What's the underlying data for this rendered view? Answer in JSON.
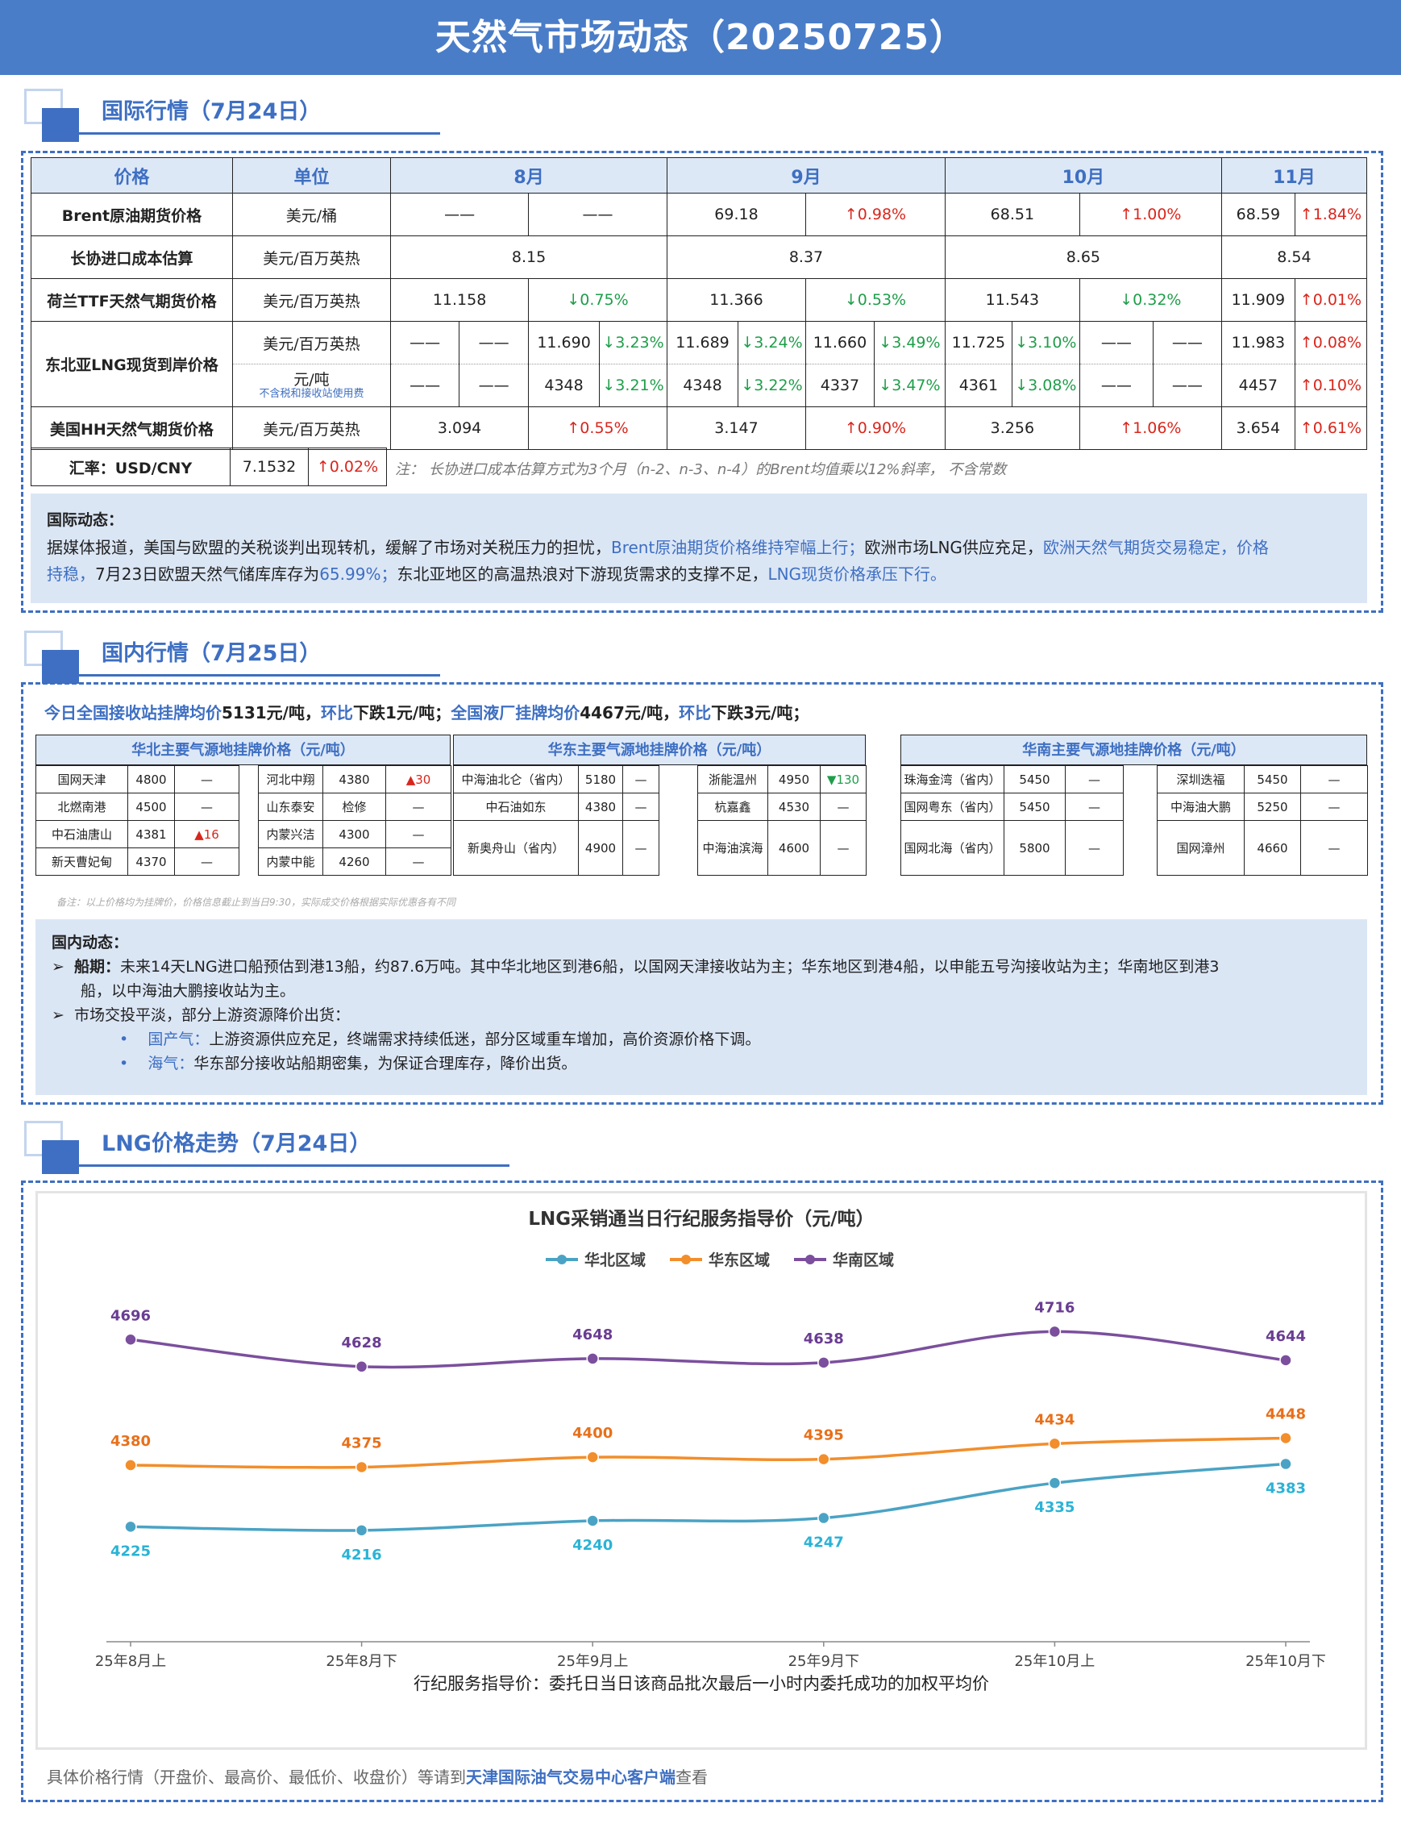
{
  "title": "天然气市场动态（20250725）",
  "sections": {
    "intl": "国际行情（7月24日）",
    "domestic": "国内行情（7月25日）",
    "lng": "LNG价格走势（7月24日）"
  },
  "intl_table": {
    "headers": [
      "价格",
      "单位",
      "8月",
      "9月",
      "10月",
      "11月"
    ],
    "brent": {
      "name": "Brent原油期货价格",
      "unit": "美元/桶",
      "aug": "——",
      "aug_chg": "——",
      "sep": "69.18",
      "sep_chg": "↑0.98%",
      "oct": "68.51",
      "oct_chg": "↑1.00%",
      "nov": "68.59",
      "nov_chg": "↑1.84%"
    },
    "longxie": {
      "name": "长协进口成本估算",
      "unit": "美元/百万英热",
      "aug": "8.15",
      "sep": "8.37",
      "oct": "8.65",
      "nov": "8.54"
    },
    "ttf": {
      "name": "荷兰TTF天然气期货价格",
      "unit": "美元/百万英热",
      "aug": "11.158",
      "aug_chg": "↓0.75%",
      "sep": "11.366",
      "sep_chg": "↓0.53%",
      "oct": "11.543",
      "oct_chg": "↓0.32%",
      "nov": "11.909",
      "nov_chg": "↑0.01%"
    },
    "neasia": {
      "name": "东北亚LNG现货到岸价格",
      "unit1": "美元/百万英热",
      "unit2": "元/吨",
      "unit2_note": "不含税和接收站使用费",
      "row1": [
        "——",
        "——",
        "11.690",
        "↓3.23%",
        "11.689",
        "↓3.24%",
        "11.660",
        "↓3.49%",
        "11.725",
        "↓3.10%",
        "——",
        "——",
        "11.983",
        "↑0.08%"
      ],
      "row2": [
        "——",
        "——",
        "4348",
        "↓3.21%",
        "4348",
        "↓3.22%",
        "4337",
        "↓3.47%",
        "4361",
        "↓3.08%",
        "——",
        "——",
        "4457",
        "↑0.10%"
      ]
    },
    "hh": {
      "name": "美国HH天然气期货价格",
      "unit": "美元/百万英热",
      "aug": "3.094",
      "aug_chg": "↑0.55%",
      "sep": "3.147",
      "sep_chg": "↑0.90%",
      "oct": "3.256",
      "oct_chg": "↑1.06%",
      "nov": "3.654",
      "nov_chg": "↑0.61%"
    },
    "fx": {
      "label": "汇率：USD/CNY",
      "value": "7.1532",
      "chg": "↑0.02%"
    },
    "note": "注： 长协进口成本估算方式为3个月（n-2、n-3、n-4）的Brent均值乘以12%斜率， 不含常数"
  },
  "intl_news": {
    "title": "国际动态：",
    "p1": "据媒体报道，美国与欧盟的关税谈判出现转机，缓解了市场对关税压力的担忧，",
    "p1_blue": "Brent原油期货价格维持窄幅上行；",
    "p2": "欧洲市场LNG供应充足，",
    "p2_blue": "欧洲天然气期货交易稳定，价格",
    "p3_blue": "持稳，",
    "p3": "7月23日欧盟天然气储库库存为",
    "p3_pct": "65.99%；",
    "p3_rest": "东北亚地区的高温热浪对下游现货需求的支撑不足，",
    "p3_blue2": "LNG现货价格承压下行。"
  },
  "domestic": {
    "summary_a": "今日全国接收站挂牌均价",
    "summary_b": "5131元/吨，",
    "summary_c": "环比",
    "summary_d": "下跌1元/吨；",
    "summary_e": "全国液厂挂牌均价",
    "summary_f": "4467元/吨，",
    "summary_g": "环比",
    "summary_h": "下跌3元/吨；",
    "north": {
      "title": "华北主要气源地挂牌价格（元/吨）",
      "left": [
        [
          "国网天津",
          "4800",
          "—"
        ],
        [
          "北燃南港",
          "4500",
          "—"
        ],
        [
          "中石油唐山",
          "4381",
          "▲16"
        ],
        [
          "新天曹妃甸",
          "4370",
          "—"
        ]
      ],
      "right": [
        [
          "河北中翔",
          "4380",
          "▲30"
        ],
        [
          "山东泰安",
          "检修",
          "—"
        ],
        [
          "内蒙兴洁",
          "4300",
          "—"
        ],
        [
          "内蒙中能",
          "4260",
          "—"
        ]
      ]
    },
    "east": {
      "title": "华东主要气源地挂牌价格（元/吨）",
      "left": [
        [
          "中海油北仑（省内）",
          "5180",
          "—"
        ],
        [
          "中石油如东",
          "4380",
          "—"
        ],
        [
          "新奥舟山（省内）",
          "4900",
          "—"
        ]
      ],
      "right": [
        [
          "浙能温州",
          "4950",
          "▼130"
        ],
        [
          "杭嘉鑫",
          "4530",
          "—"
        ],
        [
          "中海油滨海",
          "4600",
          "—"
        ]
      ]
    },
    "south": {
      "title": "华南主要气源地挂牌价格（元/吨）",
      "left": [
        [
          "珠海金湾（省内）",
          "5450",
          "—"
        ],
        [
          "国网粤东（省内）",
          "5450",
          "—"
        ],
        [
          "国网北海（省内）",
          "5800",
          "—"
        ]
      ],
      "right": [
        [
          "深圳迭福",
          "5450",
          "—"
        ],
        [
          "中海油大鹏",
          "5250",
          "—"
        ],
        [
          "国网漳州",
          "4660",
          "—"
        ]
      ]
    },
    "remark": "备注：以上价格均为挂牌价，价格信息截止到当日9:30，实际成交价格根据实际优惠各有不同",
    "news_title": "国内动态：",
    "ship_label": "船期：",
    "ship_text1": "未来14天LNG进口船预估到港13船，约87.6万吨。其中华北地区到港6船，以国网天津接收站为主；华东地区到港4船，以申能五号沟接收站为主；华南地区到港3",
    "ship_text2": "船，以中海油大鹏接收站为主。",
    "market_text": "市场交投平淡，部分上游资源降价出货：",
    "dom_label": "国产气：",
    "dom_text": "上游资源供应充足，终端需求持续低迷，部分区域重车增加，高价资源价格下调。",
    "sea_label": "海气：",
    "sea_text": "华东部分接收站船期密集，为保证合理库存，降价出货。"
  },
  "chart_data": {
    "type": "line",
    "title": "LNG采销通当日行纪服务指导价（元/吨）",
    "xlabel": "行纪服务指导价：委托日当日该商品批次最后一小时内委托成功的加权平均价",
    "categories": [
      "25年8月上",
      "25年8月下",
      "25年9月上",
      "25年9月下",
      "25年10月上",
      "25年10月下"
    ],
    "ylim": [
      4100,
      4800
    ],
    "legend": "top-center",
    "grid": false,
    "series": [
      {
        "name": "华北区域",
        "color": "#4aa3c4",
        "label_color": "#2bb3d6",
        "values": [
          4225,
          4216,
          4240,
          4247,
          4335,
          4383
        ]
      },
      {
        "name": "华东区域",
        "color": "#f28e2b",
        "label_color": "#e8701a",
        "values": [
          4380,
          4375,
          4400,
          4395,
          4434,
          4448
        ]
      },
      {
        "name": "华南区域",
        "color": "#7b4f9d",
        "label_color": "#6a3d92",
        "values": [
          4696,
          4628,
          4648,
          4638,
          4716,
          4644
        ]
      }
    ]
  },
  "footer": {
    "a": "具体价格行情（开盘价、最高价、最低价、收盘价）等请到",
    "b": "天津国际油气交易中心客户端",
    "c": "查看"
  }
}
